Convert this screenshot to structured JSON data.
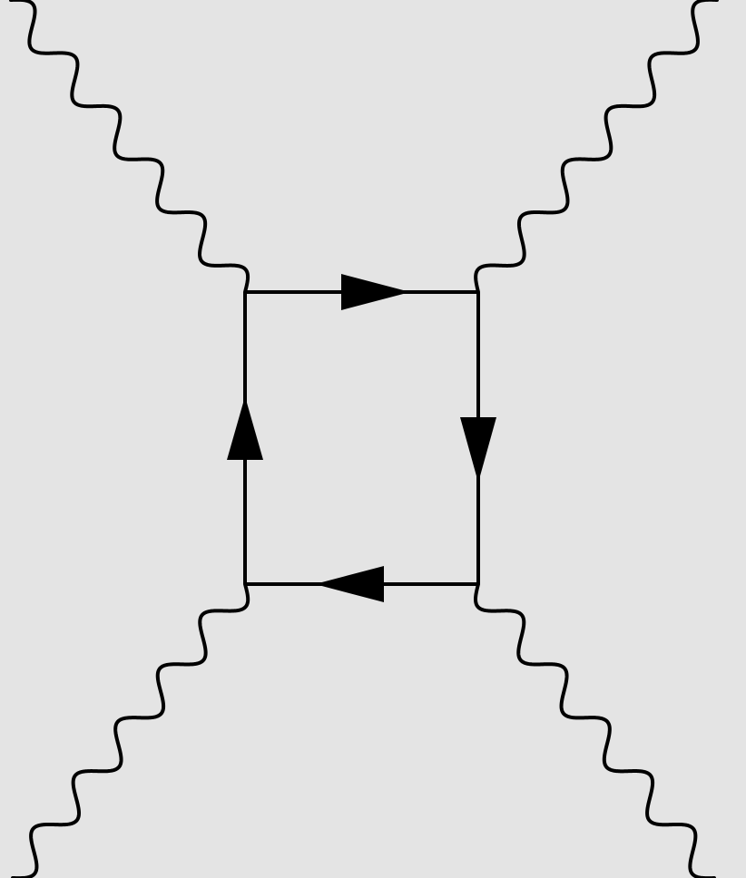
{
  "diagram": {
    "type": "feynman-box-diagram",
    "background_color": "#e4e4e4",
    "line_color": "#000000",
    "external_lines": [
      {
        "name": "photon-top-left",
        "style": "wavy"
      },
      {
        "name": "photon-top-right",
        "style": "wavy"
      },
      {
        "name": "photon-bottom-left",
        "style": "wavy"
      },
      {
        "name": "photon-bottom-right",
        "style": "wavy"
      }
    ],
    "loop": {
      "style": "solid",
      "propagators": [
        {
          "name": "fermion-top",
          "arrow_direction": "right"
        },
        {
          "name": "fermion-right",
          "arrow_direction": "down"
        },
        {
          "name": "fermion-bottom",
          "arrow_direction": "left"
        },
        {
          "name": "fermion-left",
          "arrow_direction": "up"
        }
      ]
    }
  }
}
